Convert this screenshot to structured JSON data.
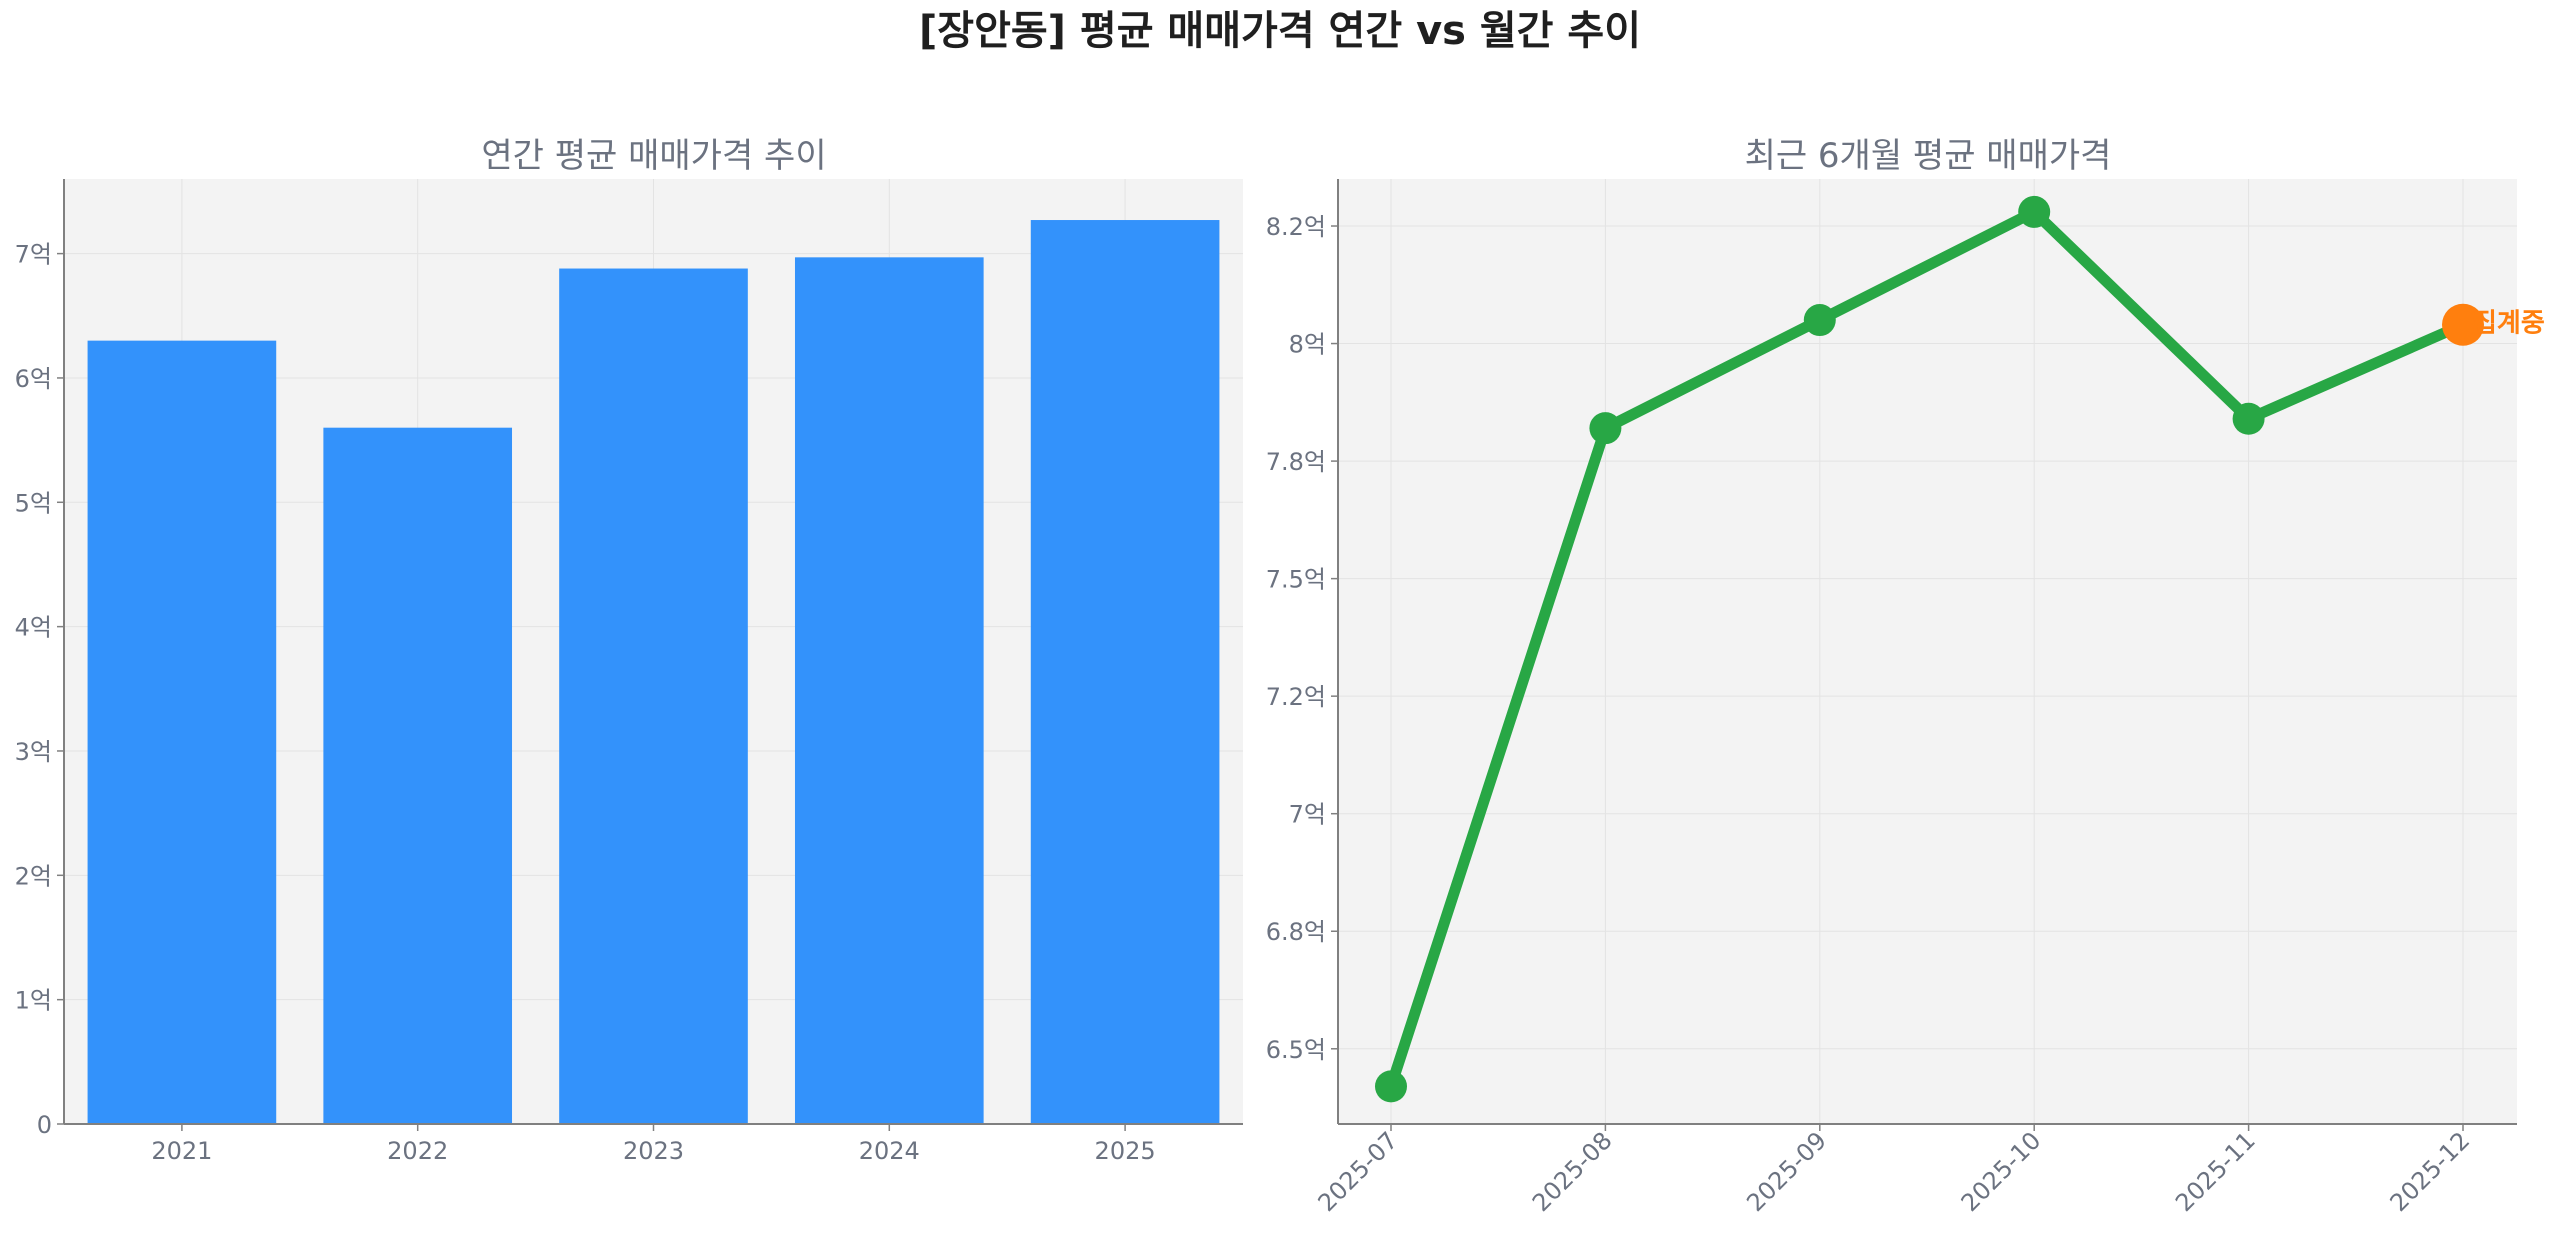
{
  "suptitle": "[장안동] 평균 매매가격 연간 vs 월간 추이",
  "colors": {
    "bar": "#3392fb",
    "line": "#28a745",
    "highlight": "#ff7f0e",
    "plot_bg": "#f3f3f3",
    "grid": "#e3e3e3",
    "axis": "#808080",
    "text": "#6b7280"
  },
  "chart_data": [
    {
      "type": "bar",
      "title": "연간 평균 매매가격 추이",
      "categories": [
        "2021",
        "2022",
        "2023",
        "2024",
        "2025"
      ],
      "values": [
        6.3,
        5.6,
        6.88,
        6.97,
        7.27
      ],
      "unit": "억",
      "ylim": [
        0,
        7.6
      ],
      "yticks": [
        0,
        1,
        2,
        3,
        4,
        5,
        6,
        7
      ],
      "ytick_labels": [
        "0",
        "1억",
        "2억",
        "3억",
        "4억",
        "5억",
        "6억",
        "7억"
      ],
      "grid": true,
      "xlabel": "",
      "ylabel": ""
    },
    {
      "type": "line",
      "title": "최근 6개월 평균 매매가격",
      "categories": [
        "2025-07",
        "2025-08",
        "2025-09",
        "2025-10",
        "2025-11",
        "2025-12"
      ],
      "values": [
        6.42,
        7.82,
        8.05,
        8.28,
        7.84,
        8.04
      ],
      "unit": "억",
      "ylim": [
        6.34,
        8.35
      ],
      "yticks": [
        6.5,
        6.75,
        7.0,
        7.25,
        7.5,
        7.75,
        8.0,
        8.25
      ],
      "ytick_labels": [
        "6.5억",
        "6.8억",
        "7억",
        "7.2억",
        "7.5억",
        "7.8억",
        "8억",
        "8.2억"
      ],
      "grid": true,
      "xlabel": "",
      "ylabel": "",
      "annotation": {
        "category": "2025-12",
        "text": "집계중"
      }
    }
  ]
}
